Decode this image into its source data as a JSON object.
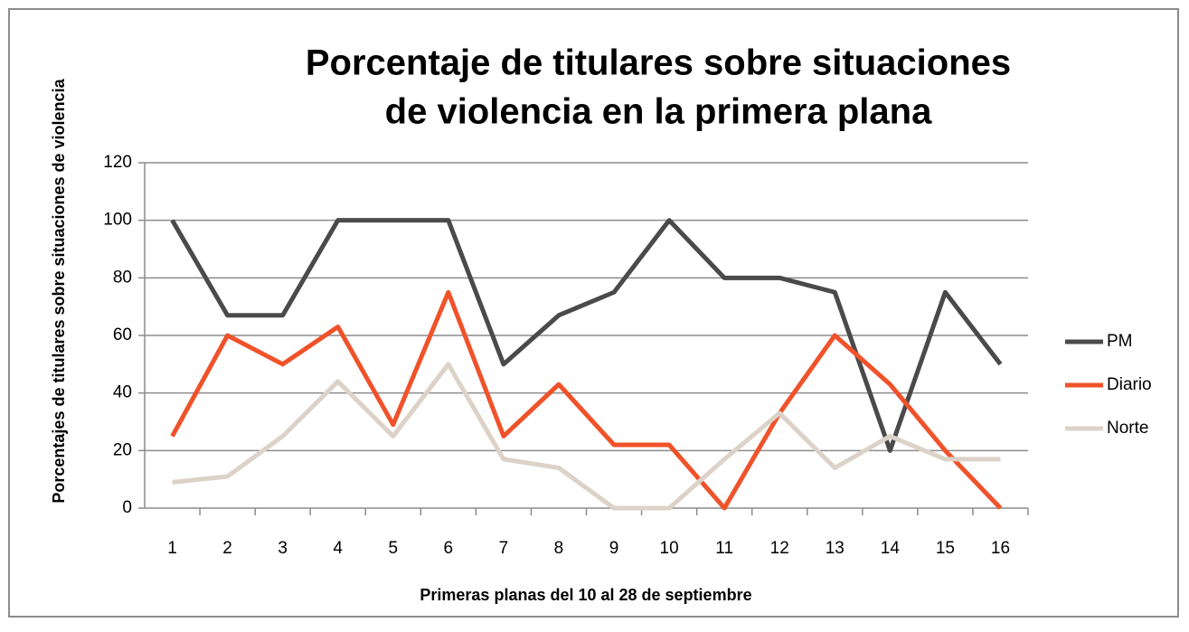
{
  "chart_data": {
    "type": "line",
    "title": [
      "Porcentaje de titulares sobre situaciones",
      "de violencia en la primera plana"
    ],
    "x_label": "Primeras planas del 10 al 28 de septiembre",
    "y_label": "Porcentajes de titulares sobre situaciones de violencia",
    "categories": [
      "1",
      "2",
      "3",
      "4",
      "5",
      "6",
      "7",
      "8",
      "9",
      "10",
      "11",
      "12",
      "13",
      "14",
      "15",
      "16"
    ],
    "series": [
      {
        "name": "PM",
        "color": "#4a4a4a",
        "values": [
          100,
          67,
          67,
          100,
          100,
          100,
          50,
          67,
          75,
          100,
          80,
          80,
          75,
          20,
          75,
          50
        ]
      },
      {
        "name": "Diario",
        "color": "#f0522a",
        "values": [
          25,
          60,
          50,
          63,
          29,
          75,
          25,
          43,
          22,
          22,
          0,
          33,
          60,
          43,
          20,
          0
        ]
      },
      {
        "name": "Norte",
        "color": "#dcd2c8",
        "values": [
          9,
          11,
          25,
          44,
          25,
          50,
          17,
          14,
          0,
          0,
          17,
          33,
          14,
          25,
          17,
          17
        ]
      }
    ],
    "ylim": [
      0,
      120
    ],
    "yticks": [
      0,
      20,
      40,
      60,
      80,
      100,
      120
    ],
    "grid": true,
    "legend": "right"
  }
}
